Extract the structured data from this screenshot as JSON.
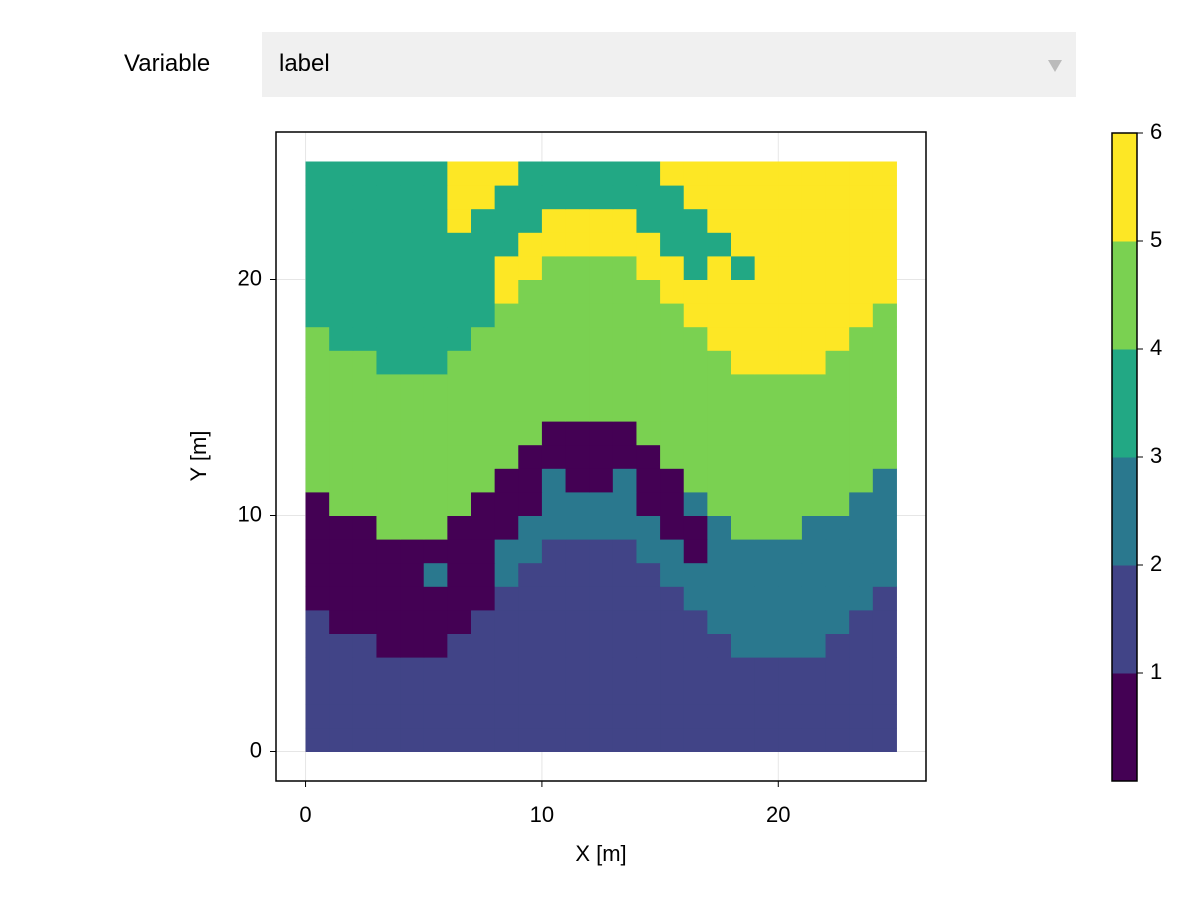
{
  "controls": {
    "label": "Variable",
    "selected": "label"
  },
  "chart_data": {
    "type": "heatmap",
    "xlabel": "X [m]",
    "ylabel": "Y [m]",
    "xlim": [
      -1.25,
      26.25
    ],
    "ylim": [
      -1.25,
      26.25
    ],
    "xticks": [
      0,
      10,
      20
    ],
    "yticks": [
      0,
      10,
      20
    ],
    "grid": true,
    "x0": 0,
    "y0": 0,
    "cell": 1,
    "clim": [
      0,
      6
    ],
    "cticks": [
      1,
      2,
      3,
      4,
      5,
      6
    ],
    "colormap": [
      "#440154",
      "#414487",
      "#2a788e",
      "#22a884",
      "#7ad151",
      "#fde725"
    ],
    "z": [
      [
        2,
        2,
        2,
        2,
        2,
        2,
        2,
        2,
        2,
        2,
        2,
        2,
        2,
        2,
        2,
        2,
        2,
        2,
        2,
        2,
        2,
        2,
        2,
        2,
        2
      ],
      [
        2,
        2,
        2,
        2,
        2,
        2,
        2,
        2,
        2,
        2,
        2,
        2,
        2,
        2,
        2,
        2,
        2,
        2,
        2,
        2,
        2,
        2,
        2,
        2,
        2
      ],
      [
        2,
        2,
        2,
        2,
        2,
        2,
        2,
        2,
        2,
        2,
        2,
        2,
        2,
        2,
        2,
        2,
        2,
        2,
        2,
        2,
        2,
        2,
        2,
        2,
        2
      ],
      [
        2,
        2,
        2,
        2,
        2,
        2,
        2,
        2,
        2,
        2,
        2,
        2,
        2,
        2,
        2,
        2,
        2,
        2,
        2,
        2,
        2,
        2,
        2,
        2,
        2
      ],
      [
        2,
        2,
        2,
        1,
        1,
        1,
        2,
        2,
        2,
        2,
        2,
        2,
        2,
        2,
        2,
        2,
        2,
        2,
        3,
        3,
        3,
        3,
        2,
        2,
        2
      ],
      [
        2,
        1,
        1,
        1,
        1,
        1,
        1,
        2,
        2,
        2,
        2,
        2,
        2,
        2,
        2,
        2,
        2,
        3,
        3,
        3,
        3,
        3,
        3,
        2,
        2
      ],
      [
        1,
        1,
        1,
        1,
        1,
        1,
        1,
        1,
        2,
        2,
        2,
        2,
        2,
        2,
        2,
        2,
        3,
        3,
        3,
        3,
        3,
        3,
        3,
        3,
        2
      ],
      [
        1,
        1,
        1,
        1,
        1,
        3,
        1,
        1,
        3,
        2,
        2,
        2,
        2,
        2,
        2,
        3,
        3,
        3,
        3,
        3,
        3,
        3,
        3,
        3,
        3
      ],
      [
        1,
        1,
        1,
        1,
        1,
        1,
        1,
        1,
        3,
        3,
        2,
        2,
        2,
        2,
        3,
        3,
        1,
        3,
        3,
        3,
        3,
        3,
        3,
        3,
        3
      ],
      [
        1,
        1,
        1,
        5,
        5,
        5,
        1,
        1,
        1,
        3,
        3,
        3,
        3,
        3,
        3,
        1,
        1,
        3,
        5,
        5,
        5,
        3,
        3,
        3,
        3
      ],
      [
        1,
        5,
        5,
        5,
        5,
        5,
        5,
        1,
        1,
        1,
        3,
        3,
        3,
        3,
        1,
        1,
        3,
        5,
        5,
        5,
        5,
        5,
        5,
        3,
        3
      ],
      [
        5,
        5,
        5,
        5,
        5,
        5,
        5,
        5,
        1,
        1,
        3,
        1,
        1,
        3,
        1,
        1,
        5,
        5,
        5,
        5,
        5,
        5,
        5,
        5,
        3
      ],
      [
        5,
        5,
        5,
        5,
        5,
        5,
        5,
        5,
        5,
        1,
        1,
        1,
        1,
        1,
        1,
        5,
        5,
        5,
        5,
        5,
        5,
        5,
        5,
        5,
        5
      ],
      [
        5,
        5,
        5,
        5,
        5,
        5,
        5,
        5,
        5,
        5,
        1,
        1,
        1,
        1,
        5,
        5,
        5,
        5,
        5,
        5,
        5,
        5,
        5,
        5,
        5
      ],
      [
        5,
        5,
        5,
        5,
        5,
        5,
        5,
        5,
        5,
        5,
        5,
        5,
        5,
        5,
        5,
        5,
        5,
        5,
        5,
        5,
        5,
        5,
        5,
        5,
        5
      ],
      [
        5,
        5,
        5,
        5,
        5,
        5,
        5,
        5,
        5,
        5,
        5,
        5,
        5,
        5,
        5,
        5,
        5,
        5,
        5,
        5,
        5,
        5,
        5,
        5,
        5
      ],
      [
        5,
        5,
        5,
        4,
        4,
        4,
        5,
        5,
        5,
        5,
        5,
        5,
        5,
        5,
        5,
        5,
        5,
        5,
        6,
        6,
        6,
        6,
        5,
        5,
        5
      ],
      [
        5,
        4,
        4,
        4,
        4,
        4,
        4,
        5,
        5,
        5,
        5,
        5,
        5,
        5,
        5,
        5,
        5,
        6,
        6,
        6,
        6,
        6,
        6,
        5,
        5
      ],
      [
        4,
        4,
        4,
        4,
        4,
        4,
        4,
        4,
        5,
        5,
        5,
        5,
        5,
        5,
        5,
        5,
        6,
        6,
        6,
        6,
        6,
        6,
        6,
        6,
        5
      ],
      [
        4,
        4,
        4,
        4,
        4,
        4,
        4,
        4,
        6,
        5,
        5,
        5,
        5,
        5,
        5,
        6,
        6,
        6,
        6,
        6,
        6,
        6,
        6,
        6,
        6
      ],
      [
        4,
        4,
        4,
        4,
        4,
        4,
        4,
        4,
        6,
        6,
        5,
        5,
        5,
        5,
        6,
        6,
        4,
        6,
        4,
        6,
        6,
        6,
        6,
        6,
        6
      ],
      [
        4,
        4,
        4,
        4,
        4,
        4,
        4,
        4,
        4,
        6,
        6,
        6,
        6,
        6,
        6,
        4,
        4,
        4,
        6,
        6,
        6,
        6,
        6,
        6,
        6
      ],
      [
        4,
        4,
        4,
        4,
        4,
        4,
        6,
        4,
        4,
        4,
        6,
        6,
        6,
        6,
        4,
        4,
        4,
        6,
        6,
        6,
        6,
        6,
        6,
        6,
        6
      ],
      [
        4,
        4,
        4,
        4,
        4,
        4,
        6,
        6,
        4,
        4,
        4,
        4,
        4,
        4,
        4,
        4,
        6,
        6,
        6,
        6,
        6,
        6,
        6,
        6,
        6
      ],
      [
        4,
        4,
        4,
        4,
        4,
        4,
        6,
        6,
        6,
        4,
        4,
        4,
        4,
        4,
        4,
        6,
        6,
        6,
        6,
        6,
        6,
        6,
        6,
        6,
        6
      ]
    ]
  }
}
